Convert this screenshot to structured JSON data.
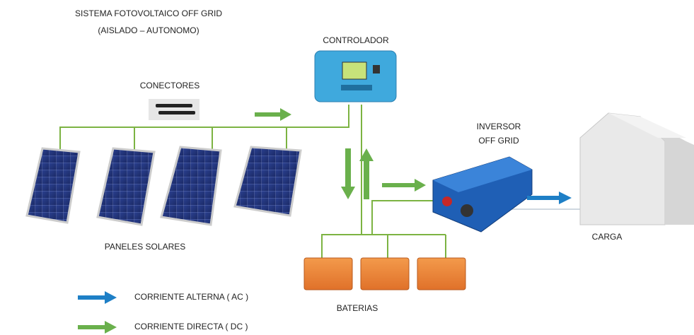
{
  "header": {
    "title": "SISTEMA FOTOVOLTAICO OFF GRID",
    "subtitle": "(AISLADO – AUTONOMO)"
  },
  "labels": {
    "controller": "CONTROLADOR",
    "connectors": "CONECTORES",
    "inverter": [
      "INVERSOR",
      "OFF GRID"
    ],
    "load": "CARGA",
    "panels": "PANELES SOLARES",
    "batteries": "BATERIAS"
  },
  "legend": [
    {
      "label": "CORRIENTE ALTERNA ( AC )",
      "color": "#1e7fc6"
    },
    {
      "label": "CORRIENTE DIRECTA ( DC )",
      "color": "#6ab04c"
    }
  ]
}
